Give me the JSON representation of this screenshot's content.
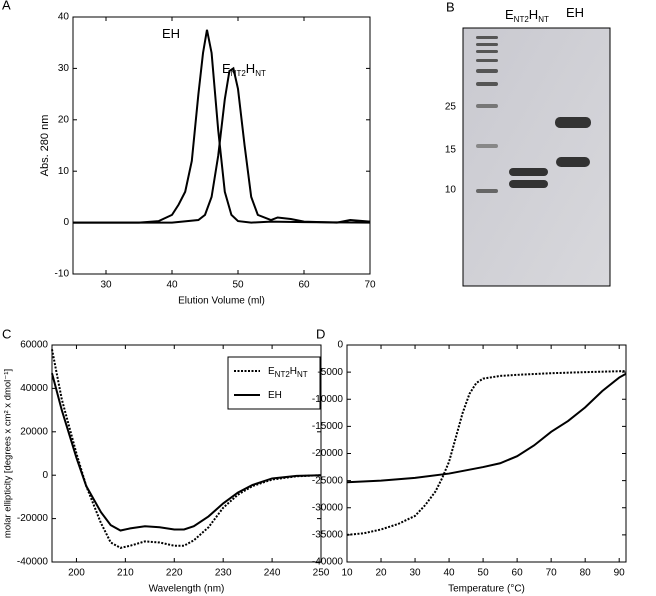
{
  "chart_data": [
    {
      "type": "line",
      "label": "A",
      "ylabel": "Abs. 280 nm",
      "xlabel": "Elution Volume (ml)",
      "xlim": [
        25,
        70
      ],
      "xticks": [
        30,
        40,
        50,
        60,
        70
      ],
      "ylim": [
        -10,
        40
      ],
      "yticks": [
        -10,
        0,
        10,
        20,
        30,
        40
      ],
      "annotations": [
        [
          "EH"
        ],
        [
          "E",
          "NT2",
          "H",
          "NT"
        ]
      ],
      "series": [
        {
          "color": "#000000",
          "style": "solid",
          "x": [
            25,
            35,
            38,
            40,
            41,
            42,
            43,
            44,
            44.7,
            45.3,
            46,
            47,
            48,
            49,
            50,
            52,
            55,
            60,
            70
          ],
          "values": [
            0,
            0,
            0.3,
            1.5,
            3.5,
            6,
            12,
            25,
            33,
            37.5,
            33,
            18,
            6,
            1.5,
            0.3,
            0,
            0.2,
            0.1,
            0
          ]
        },
        {
          "color": "#000000",
          "style": "solid",
          "x": [
            25,
            40,
            44,
            45,
            46,
            47,
            48,
            48.7,
            49.3,
            50,
            51,
            52,
            53,
            55,
            56,
            58,
            60,
            65,
            67,
            70
          ],
          "values": [
            0,
            0,
            0.5,
            1.5,
            5,
            13,
            24,
            29.5,
            30,
            26,
            15,
            5,
            1.5,
            0.5,
            1,
            0.7,
            0.2,
            0,
            0.5,
            0.2
          ]
        }
      ]
    },
    {
      "type": "line",
      "label": "C",
      "ylabel": "molar ellipticity [degrees x cm² x dmol⁻¹]",
      "xlabel": "Wavelength (nm)",
      "xlim": [
        195,
        250
      ],
      "xticks": [
        200,
        210,
        220,
        230,
        240,
        250
      ],
      "ylim": [
        -40000,
        60000
      ],
      "yticks": [
        -40000,
        -20000,
        0,
        20000,
        40000,
        60000
      ],
      "legend": "upper right",
      "series": [
        {
          "name": [
            "E",
            "NT2",
            "H",
            "NT"
          ],
          "color": "#000000",
          "style": "dotted",
          "x": [
            195,
            197,
            200,
            202,
            205,
            207,
            209,
            211,
            214,
            217,
            220,
            222,
            224,
            227,
            230,
            233,
            236,
            240,
            245,
            250
          ],
          "values": [
            58000,
            35000,
            10000,
            -5000,
            -22000,
            -31000,
            -33500,
            -32500,
            -30500,
            -31000,
            -32500,
            -32500,
            -30000,
            -24000,
            -15000,
            -9000,
            -5000,
            -2000,
            -500,
            0
          ]
        },
        {
          "name": [
            "EH"
          ],
          "color": "#000000",
          "style": "solid",
          "x": [
            195,
            197,
            200,
            202,
            205,
            207,
            209,
            211,
            214,
            217,
            220,
            222,
            224,
            227,
            230,
            233,
            236,
            240,
            245,
            250
          ],
          "values": [
            47000,
            30000,
            8000,
            -5000,
            -17000,
            -23000,
            -25500,
            -24500,
            -23500,
            -24000,
            -25000,
            -25000,
            -23500,
            -19000,
            -13000,
            -8000,
            -4500,
            -1500,
            -300,
            0
          ]
        }
      ]
    },
    {
      "type": "line",
      "label": "D",
      "xlabel": "Temperature (°C)",
      "xlim": [
        10,
        92
      ],
      "xticks": [
        10,
        20,
        30,
        40,
        50,
        60,
        70,
        80,
        90
      ],
      "ylim": [
        -40000,
        0
      ],
      "yticks": [
        -40000,
        -35000,
        -30000,
        -25000,
        -20000,
        -15000,
        -10000,
        -5000,
        0
      ],
      "series": [
        {
          "color": "#000000",
          "style": "dotted",
          "x": [
            10,
            15,
            20,
            25,
            30,
            33,
            36,
            38,
            40,
            42,
            44,
            46,
            48,
            50,
            55,
            60,
            70,
            80,
            92
          ],
          "values": [
            -35000,
            -34700,
            -34000,
            -33000,
            -31500,
            -29500,
            -27000,
            -24500,
            -21500,
            -17000,
            -12500,
            -9000,
            -7000,
            -6200,
            -5700,
            -5500,
            -5200,
            -5000,
            -4800
          ]
        },
        {
          "color": "#000000",
          "style": "solid",
          "x": [
            10,
            20,
            30,
            40,
            50,
            55,
            60,
            65,
            70,
            75,
            80,
            85,
            90,
            92
          ],
          "values": [
            -25300,
            -25000,
            -24500,
            -23700,
            -22500,
            -21800,
            -20500,
            -18500,
            -16000,
            -14000,
            -11500,
            -8500,
            -6000,
            -5300
          ]
        }
      ]
    }
  ],
  "gel": {
    "label": "B",
    "marker_labels": [
      "25",
      "15",
      "10"
    ],
    "lanes": [
      [
        "E",
        "NT2",
        "H",
        "NT"
      ],
      [
        "EH"
      ]
    ]
  }
}
